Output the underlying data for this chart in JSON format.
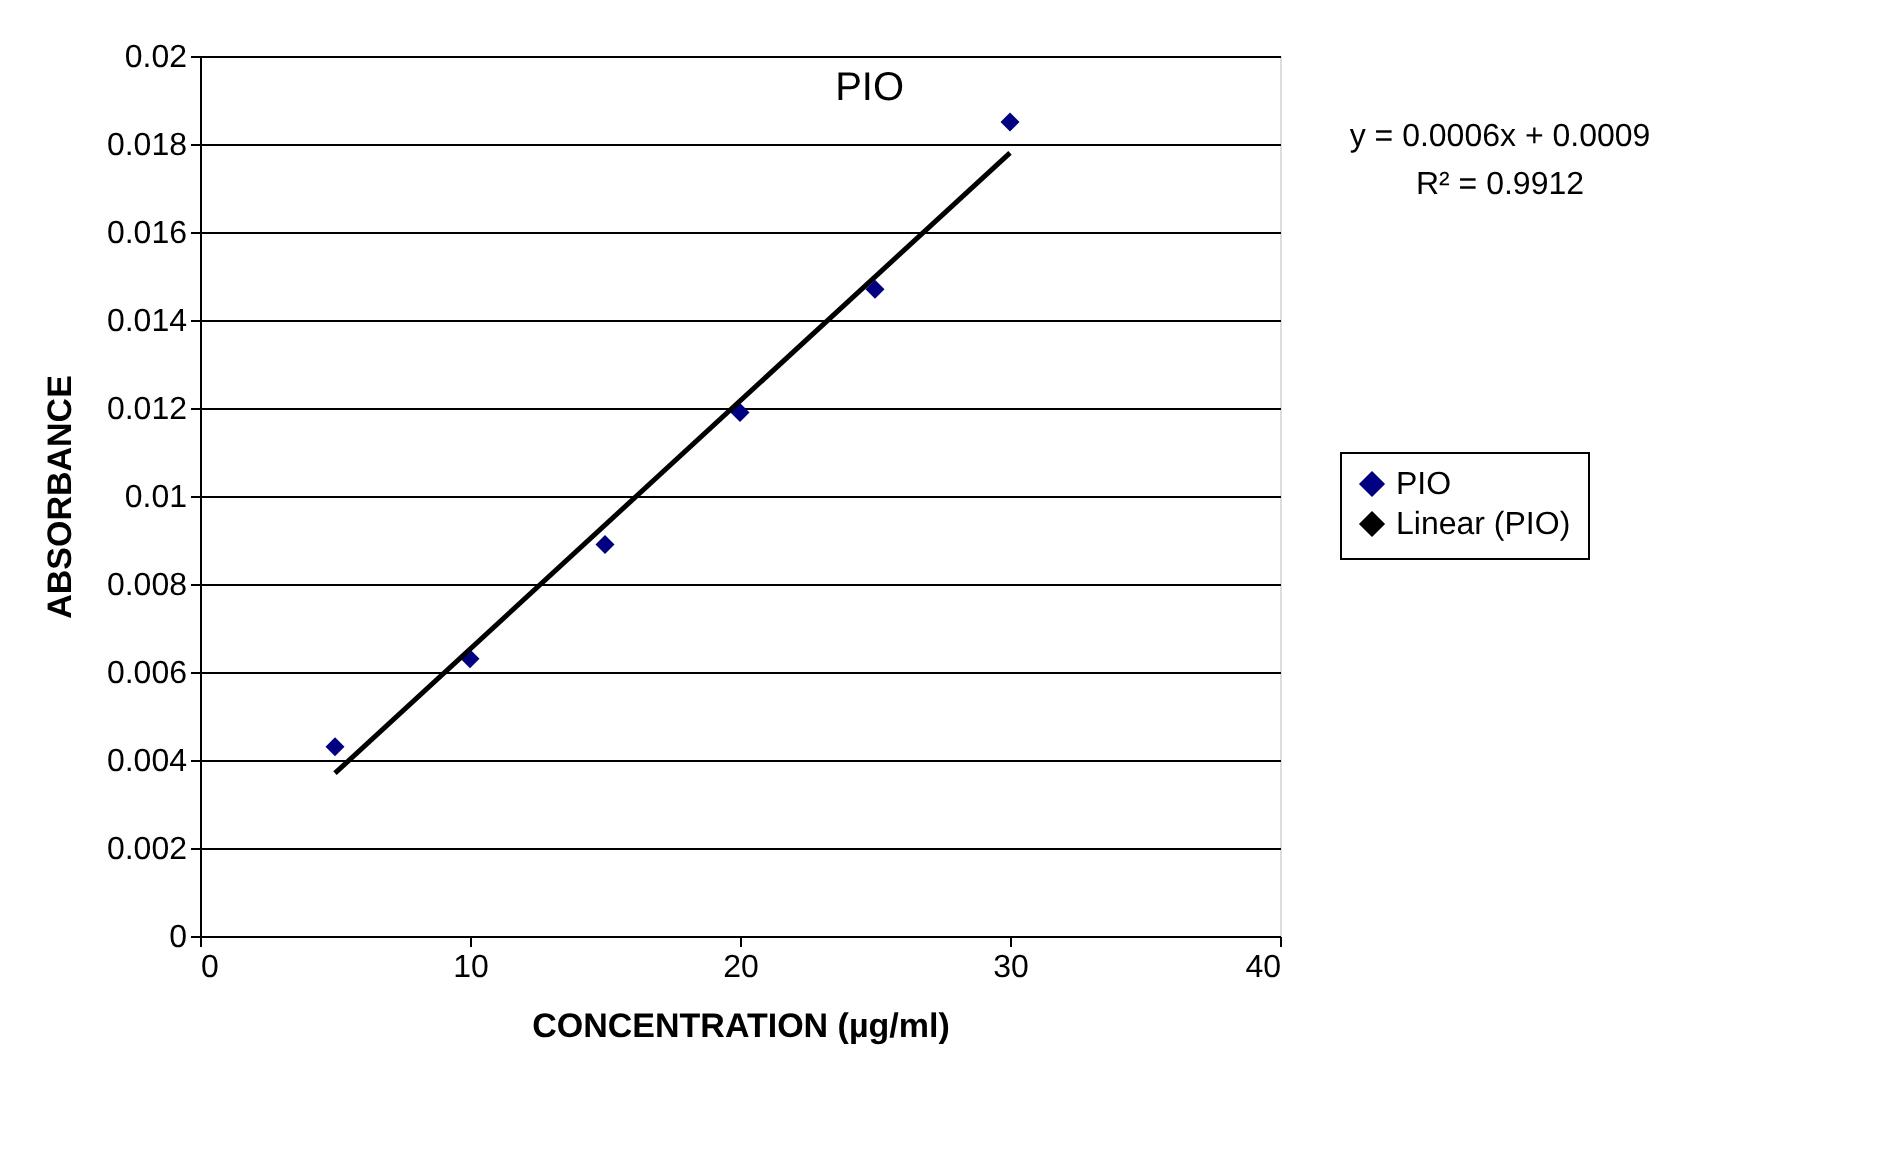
{
  "chart_data": {
    "type": "scatter",
    "title": "PIO",
    "xlabel": "CONCENTRATION (µg/ml)",
    "ylabel": "ABSORBANCE",
    "xlim": [
      0,
      40
    ],
    "xticks": [
      0,
      10,
      20,
      30,
      40
    ],
    "ylim": [
      0,
      0.02
    ],
    "yticks": [
      0,
      0.002,
      0.004,
      0.006,
      0.008,
      0.01,
      0.012,
      0.014,
      0.016,
      0.018,
      0.02
    ],
    "grid": "y",
    "legend": "right",
    "series": [
      {
        "name": "PIO",
        "type": "scatter",
        "marker": "diamond",
        "color": "#000080",
        "x": [
          5,
          10,
          15,
          20,
          25,
          30
        ],
        "values": [
          0.0043,
          0.0063,
          0.0089,
          0.0119,
          0.0147,
          0.0185
        ]
      },
      {
        "name": "Linear (PIO)",
        "type": "line",
        "color": "#000000",
        "x": [
          5,
          30
        ],
        "values": [
          0.0037,
          0.0178
        ],
        "line_style": "solid"
      }
    ],
    "annotations": [
      "y = 0.0006x + 0.0009",
      "R² = 0.9912"
    ]
  }
}
